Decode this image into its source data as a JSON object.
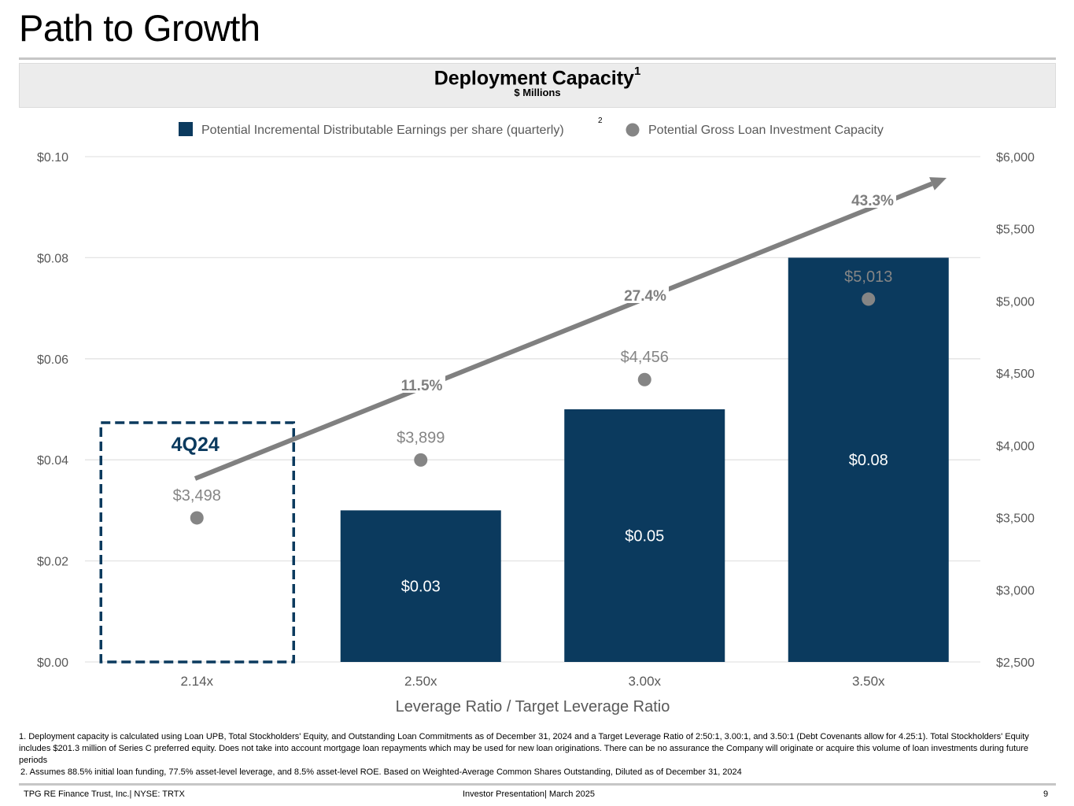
{
  "page": {
    "title": "Path to Growth",
    "chart_header": {
      "title": "Deployment Capacity",
      "title_footnote_ref": "1",
      "subtitle": "$ Millions"
    },
    "footnotes": [
      "1. Deployment capacity is calculated using Loan UPB, Total Stockholders' Equity, and Outstanding Loan Commitments as of December 31, 2024 and a Target Leverage Ratio of 2:50:1, 3.00:1, and 3.50:1 (Debt Covenants allow for 4.25:1). Total Stockholders' Equity includes $201.3 million of Series C preferred equity. Does not take into account mortgage loan repayments which may be used for new loan originations. There can be no assurance the Company will originate or acquire this volume of loan investments during future periods",
      "2. Assumes 88.5% initial loan funding, 77.5% asset-level leverage, and 8.5% asset-level ROE. Based on Weighted-Average Common Shares Outstanding, Diluted as of December 31, 2024"
    ],
    "footer": {
      "left": "TPG RE Finance Trust, Inc.| NYSE: TRTX",
      "center": "Investor Presentation| March 2025",
      "page_number": "9"
    }
  },
  "colors": {
    "bar": "#0b3a5e",
    "dot": "#858585",
    "arrow": "#808080",
    "grid": "#e3e3e3",
    "axis_text": "#595959",
    "growth_text": "#7f7f7f",
    "highlight_box": "#0b3a5e"
  },
  "chart_data": {
    "type": "bar",
    "title": "Deployment Capacity",
    "subtitle": "$ Millions",
    "xlabel": "Leverage Ratio / Target Leverage Ratio",
    "ylabel": "",
    "y2label": "",
    "categories": [
      "2.14x",
      "2.50x",
      "3.00x",
      "3.50x"
    ],
    "ylim": [
      0,
      0.1
    ],
    "yticks": [
      0,
      0.02,
      0.04,
      0.06,
      0.08,
      0.1
    ],
    "ytick_labels": [
      "$0.00",
      "$0.02",
      "$0.04",
      "$0.06",
      "$0.08",
      "$0.10"
    ],
    "y2lim": [
      2500,
      6000
    ],
    "y2ticks": [
      2500,
      3000,
      3500,
      4000,
      4500,
      5000,
      5500,
      6000
    ],
    "y2tick_labels": [
      "$2,500",
      "$3,000",
      "$3,500",
      "$4,000",
      "$4,500",
      "$5,000",
      "$5,500",
      "$6,000"
    ],
    "grid": true,
    "legend_position": "top-center",
    "series": [
      {
        "name": "Potential Incremental Distributable Earnings per share (quarterly)",
        "name_footnote_ref": "2",
        "type": "bar",
        "axis": "left",
        "values": [
          null,
          0.03,
          0.05,
          0.08
        ],
        "labels": [
          "",
          "$0.03",
          "$0.05",
          "$0.08"
        ]
      },
      {
        "name": "Potential Gross Loan Investment Capacity",
        "type": "scatter",
        "axis": "right",
        "values": [
          3498,
          3899,
          4456,
          5013
        ],
        "labels": [
          "$3,498",
          "$3,899",
          "$4,456",
          "$5,013"
        ]
      }
    ],
    "annotations": {
      "highlight_box_label": "4Q24",
      "highlight_category": "2.14x",
      "growth_arrow_labels": [
        "11.5%",
        "27.4%",
        "43.3%"
      ]
    }
  }
}
